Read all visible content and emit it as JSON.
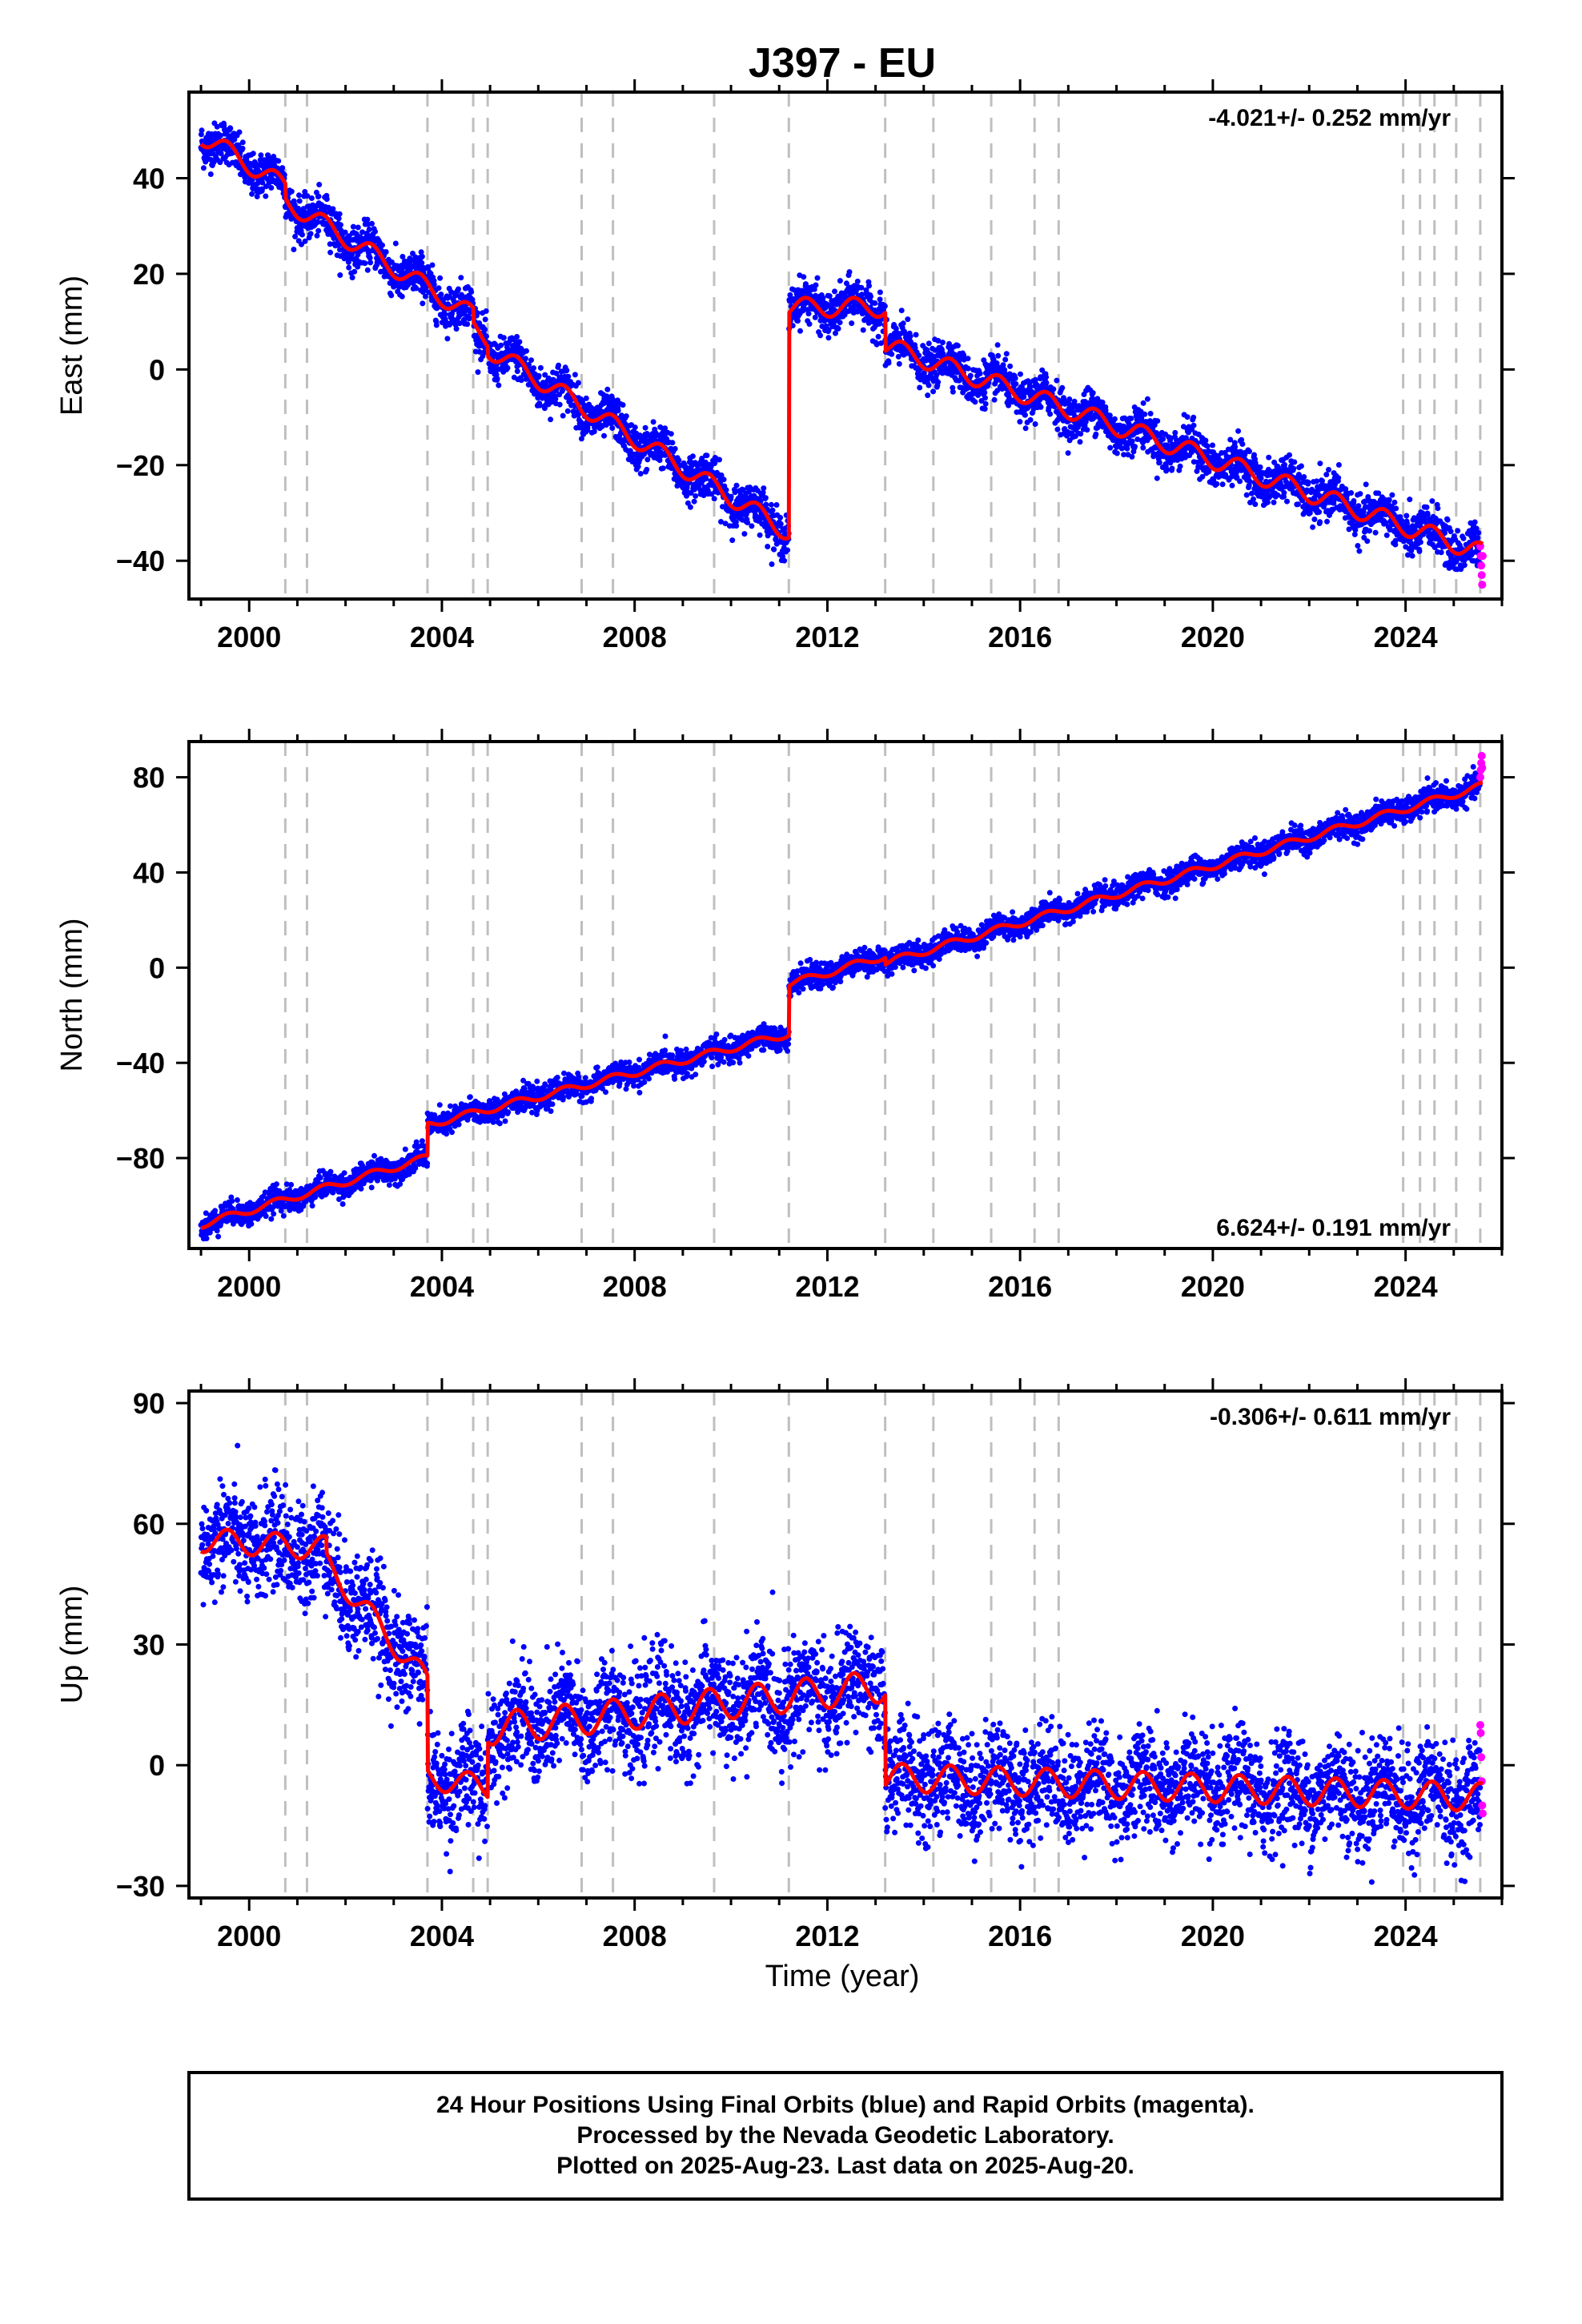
{
  "title": "J397 - EU",
  "xlabel": "Time (year)",
  "footer": {
    "line1": "24 Hour Positions Using Final Orbits (blue) and Rapid Orbits (magenta).",
    "line2": "Processed by the Nevada Geodetic Laboratory.",
    "line3": "Plotted on 2025-Aug-23. Last data on 2025-Aug-20."
  },
  "colors": {
    "final_orbits": "#0000ff",
    "rapid_orbits": "#ff00ff",
    "model": "#ff0000",
    "events": "#bfbfbf",
    "frame": "#000000"
  },
  "chart_data": [
    {
      "type": "scatter",
      "component": "East",
      "ylabel": "East (mm)",
      "rate_label": "-4.021+/- 0.252 mm/yr",
      "xlim": [
        1998.75,
        2026.0
      ],
      "ylim": [
        -48,
        58
      ],
      "xticks": [
        2000,
        2004,
        2008,
        2012,
        2016,
        2020,
        2024
      ],
      "yticks": [
        -40,
        -20,
        0,
        20,
        40
      ],
      "event_lines": [
        2000.75,
        2001.2,
        2003.7,
        2004.65,
        2004.95,
        2006.9,
        2007.55,
        2009.65,
        2011.2,
        2013.2,
        2014.2,
        2015.4,
        2016.3,
        2016.8,
        2023.95,
        2024.3,
        2024.6,
        2025.05,
        2025.55
      ],
      "model": {
        "segments": [
          {
            "t": [
              1999.0,
              2011.2
            ],
            "start": 49,
            "rate": -6.15,
            "amp": 2.0
          },
          {
            "t": [
              2011.2,
              2013.2
            ],
            "start": 13,
            "rate": 0.0,
            "amp": 2.0
          },
          {
            "t": [
              2013.2,
              2025.6
            ],
            "start": 5,
            "rate": -3.5,
            "amp": 2.0
          }
        ],
        "offsets": [
          {
            "t": 2000.75,
            "dy": -3
          },
          {
            "t": 2004.65,
            "dy": -3
          },
          {
            "t": 2004.95,
            "dy": -2
          }
        ]
      },
      "scatter_noise_mm": 2.2,
      "rapid_points": [
        [
          2025.55,
          -37
        ],
        [
          2025.56,
          -39
        ],
        [
          2025.57,
          -41
        ],
        [
          2025.58,
          -43
        ],
        [
          2025.59,
          -45
        ],
        [
          2025.6,
          -39
        ]
      ]
    },
    {
      "type": "scatter",
      "component": "North",
      "ylabel": "North (mm)",
      "rate_label": "6.624+/- 0.191 mm/yr",
      "xlim": [
        1998.75,
        2026.0
      ],
      "ylim": [
        -118,
        95
      ],
      "xticks": [
        2000,
        2004,
        2008,
        2012,
        2016,
        2020,
        2024
      ],
      "yticks": [
        -80,
        -40,
        0,
        40,
        80
      ],
      "event_lines": [
        2000.75,
        2001.2,
        2003.7,
        2004.65,
        2004.95,
        2006.9,
        2007.55,
        2009.65,
        2011.2,
        2013.2,
        2014.2,
        2015.4,
        2016.3,
        2016.8,
        2023.95,
        2024.3,
        2024.6,
        2025.05,
        2025.55
      ],
      "model": {
        "segments": [
          {
            "t": [
              1999.0,
              2003.7
            ],
            "start": -108,
            "rate": 6.0,
            "amp": 1.5
          },
          {
            "t": [
              2003.7,
              2011.2
            ],
            "start": -66,
            "rate": 5.1,
            "amp": 1.5
          },
          {
            "t": [
              2011.2,
              2013.2
            ],
            "start": -7,
            "rate": 6.0,
            "amp": 1.5
          },
          {
            "t": [
              2013.2,
              2025.6
            ],
            "start": 2,
            "rate": 6.0,
            "amp": 1.5
          }
        ],
        "offsets": []
      },
      "scatter_noise_mm": 2.5,
      "rapid_points": [
        [
          2025.55,
          80
        ],
        [
          2025.56,
          83
        ],
        [
          2025.57,
          86
        ],
        [
          2025.58,
          89
        ],
        [
          2025.59,
          84
        ]
      ]
    },
    {
      "type": "scatter",
      "component": "Up",
      "ylabel": "Up (mm)",
      "rate_label": "-0.306+/- 0.611 mm/yr",
      "xlim": [
        1998.75,
        2026.0
      ],
      "ylim": [
        -33,
        93
      ],
      "xticks": [
        2000,
        2004,
        2008,
        2012,
        2016,
        2020,
        2024
      ],
      "yticks": [
        -30,
        0,
        30,
        60,
        90
      ],
      "event_lines": [
        2000.75,
        2001.2,
        2003.7,
        2004.65,
        2004.95,
        2006.9,
        2007.55,
        2009.65,
        2011.2,
        2013.2,
        2014.2,
        2015.4,
        2016.3,
        2016.8,
        2023.95,
        2024.3,
        2024.6,
        2025.05,
        2025.55
      ],
      "model": {
        "segments": [
          {
            "t": [
              1999.0,
              2001.6
            ],
            "start": 56,
            "rate": -0.8,
            "amp": 3.0
          },
          {
            "t": [
              2001.6,
              2003.7
            ],
            "start": 50,
            "rate": -14.0,
            "amp": 3.0
          },
          {
            "t": [
              2003.7,
              2004.95
            ],
            "start": -3,
            "rate": -2.0,
            "amp": 3.0
          },
          {
            "t": [
              2004.95,
              2013.2
            ],
            "start": 9,
            "rate": 1.3,
            "amp": 4.0
          },
          {
            "t": [
              2013.2,
              2025.6
            ],
            "start": -3,
            "rate": -0.4,
            "amp": 3.5
          }
        ],
        "offsets": []
      },
      "scatter_noise_mm": 6.5,
      "rapid_points": [
        [
          2025.55,
          10
        ],
        [
          2025.56,
          8
        ],
        [
          2025.57,
          2
        ],
        [
          2025.58,
          -4
        ],
        [
          2025.59,
          -10
        ],
        [
          2025.6,
          -12
        ]
      ]
    }
  ]
}
